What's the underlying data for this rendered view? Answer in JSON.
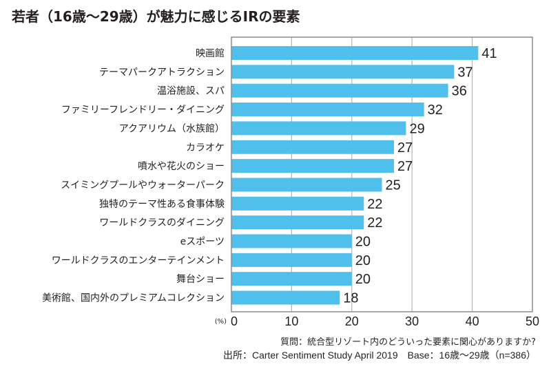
{
  "chart_data": {
    "type": "bar",
    "orientation": "horizontal",
    "title": "若者（16歳〜29歳）が魅力に感じるIRの要素",
    "xlabel": "",
    "ylabel": "",
    "unit_label": "(%)",
    "xlim": [
      0,
      50
    ],
    "xticks": [
      0,
      10,
      20,
      30,
      40,
      50
    ],
    "xtick_labels": [
      "0",
      "10",
      "20",
      "30",
      "40",
      "50"
    ],
    "grid": true,
    "bar_color": "#4fbfeb",
    "categories": [
      "映画館",
      "テーマパークアトラクション",
      "温浴施設、スパ",
      "ファミリーフレンドリー・ダイニング",
      "アクアリウム（水族館）",
      "カラオケ",
      "噴水や花火のショー",
      "スイミングプールやウォーターパーク",
      "独特のテーマ性ある食事体験",
      "ワールドクラスのダイニング",
      "eスポーツ",
      "ワールドクラスのエンターテインメント",
      "舞台ショー",
      "美術館、国内外のプレミアムコレクション"
    ],
    "values": [
      41,
      37,
      36,
      32,
      29,
      27,
      27,
      25,
      22,
      22,
      20,
      20,
      20,
      18
    ],
    "data_labels": [
      "41",
      "37",
      "36",
      "32",
      "29",
      "27",
      "27",
      "25",
      "22",
      "22",
      "20",
      "20",
      "20",
      "18"
    ]
  },
  "notes": {
    "question": "質問：統合型リゾート内のどういった要素に関心がありますか?",
    "source": "出所：Carter Sentiment Study April 2019　Base：16歳〜29歳（n=386）"
  }
}
